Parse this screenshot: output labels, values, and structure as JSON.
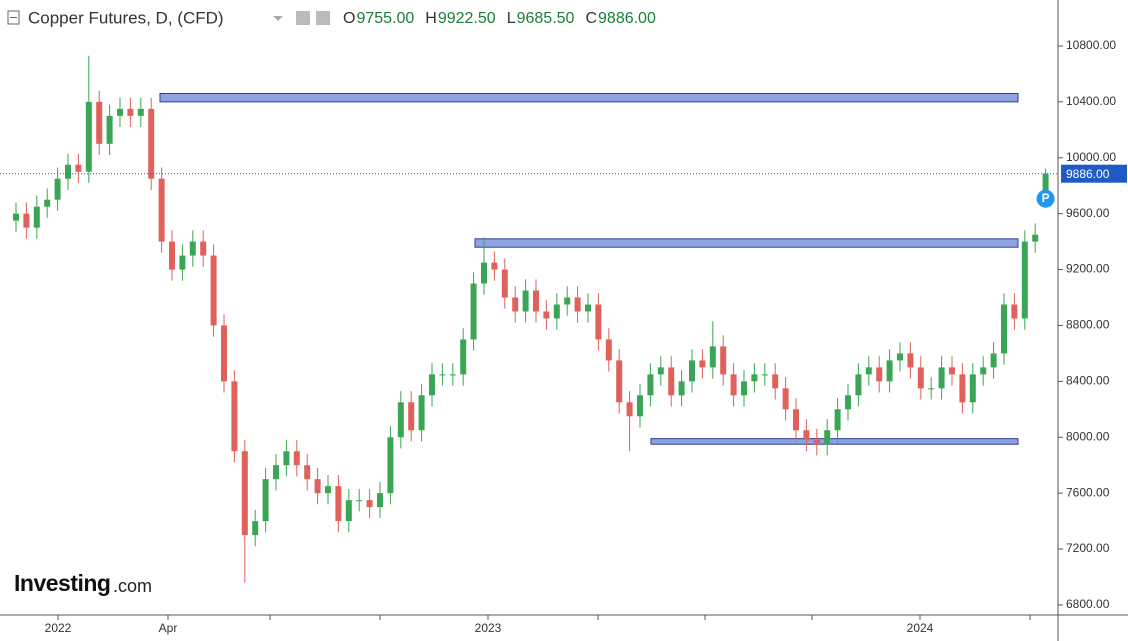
{
  "chart_data": {
    "type": "candlestick",
    "header": {
      "title": "Copper Futures, D, (CFD)",
      "ohlc": [
        {
          "label": "O",
          "value": "9755.00"
        },
        {
          "label": "H",
          "value": "9922.50"
        },
        {
          "label": "L",
          "value": "9685.50"
        },
        {
          "label": "C",
          "value": "9886.00"
        }
      ]
    },
    "logo": {
      "brand": "Investing",
      "suffix": ".com"
    },
    "up_color": "#3aa655",
    "down_color": "#e0605a",
    "x": [
      8,
      13.2,
      18.4,
      23.6,
      28.8,
      34,
      39.2,
      44.4,
      49.6,
      54.8,
      60,
      65.2,
      70.4,
      75.6,
      80.8,
      86,
      91.2,
      96.4,
      101.6,
      106.8,
      112,
      117.2,
      122.4,
      127.6,
      132.8,
      138,
      143.2,
      148.4,
      153.6,
      158.8,
      164,
      169.2,
      174.4,
      179.6,
      184.8,
      190,
      195.2,
      200.4,
      205.6,
      210.8,
      216,
      221.2,
      226.4,
      231.6,
      236.8,
      242,
      247.2,
      252.4,
      257.6,
      262.8,
      268,
      273.2,
      278.4,
      283.6,
      288.8,
      294,
      299.2,
      304.4,
      309.6,
      314.8,
      320,
      325.2,
      330.4,
      335.6,
      340.8,
      346,
      351.2,
      356.4,
      361.6,
      366.8,
      372,
      377.2,
      382.4,
      387.6,
      392.8,
      398,
      403.2,
      408.4,
      413.6,
      418.8,
      424,
      429.2,
      434.4,
      439.6,
      444.8,
      450,
      455.2,
      460.4,
      465.6,
      470.8,
      476,
      481.2,
      486.4,
      491.6,
      496.8,
      502,
      507.2,
      512.4,
      517.6,
      522.8
    ],
    "open": [
      9550,
      9600,
      9500,
      9650,
      9700,
      9850,
      9950,
      9900,
      10400,
      10100,
      10300,
      10350,
      10300,
      10350,
      9850,
      9400,
      9200,
      9300,
      9400,
      9300,
      8800,
      8400,
      7900,
      7300,
      7400,
      7700,
      7800,
      7900,
      7800,
      7700,
      7600,
      7650,
      7400,
      7550,
      7550,
      7500,
      7600,
      8000,
      8250,
      8050,
      8300,
      8450,
      8450,
      8450,
      8700,
      9100,
      9250,
      9200,
      9000,
      8900,
      9050,
      8900,
      8850,
      8950,
      9000,
      8900,
      8950,
      8700,
      8550,
      8250,
      8150,
      8300,
      8450,
      8500,
      8300,
      8400,
      8550,
      8500,
      8650,
      8450,
      8300,
      8400,
      8450,
      8450,
      8350,
      8200,
      8050,
      7980,
      7950,
      8050,
      8200,
      8300,
      8450,
      8500,
      8400,
      8550,
      8600,
      8500,
      8350,
      8350,
      8500,
      8450,
      8250,
      8450,
      8500,
      8600,
      8950,
      8850,
      9400,
      9755
    ],
    "high": [
      9680,
      9680,
      9730,
      9780,
      9930,
      10030,
      10030,
      10730,
      10480,
      10380,
      10430,
      10430,
      10430,
      10430,
      9930,
      9480,
      9380,
      9480,
      9480,
      9380,
      8880,
      8480,
      7980,
      7480,
      7780,
      7880,
      7980,
      7980,
      7880,
      7780,
      7730,
      7730,
      7630,
      7630,
      7630,
      7680,
      8080,
      8330,
      8330,
      8380,
      8530,
      8530,
      8530,
      8780,
      9180,
      9430,
      9330,
      9280,
      9080,
      9130,
      9130,
      8980,
      9030,
      9080,
      9080,
      9030,
      9030,
      8780,
      8630,
      8330,
      8380,
      8530,
      8580,
      8580,
      8480,
      8630,
      8630,
      8830,
      8730,
      8530,
      8480,
      8530,
      8530,
      8530,
      8430,
      8280,
      8130,
      8060,
      8130,
      8280,
      8380,
      8530,
      8580,
      8580,
      8630,
      8680,
      8680,
      8580,
      8430,
      8580,
      8580,
      8530,
      8530,
      8580,
      8680,
      9030,
      9030,
      9480,
      9530,
      9922.5
    ],
    "low": [
      9470,
      9420,
      9420,
      9570,
      9620,
      9770,
      9820,
      9820,
      10020,
      10020,
      10220,
      10220,
      10220,
      9770,
      9320,
      9120,
      9120,
      9220,
      9220,
      8720,
      8320,
      7820,
      6960,
      7220,
      7320,
      7620,
      7720,
      7720,
      7620,
      7520,
      7520,
      7320,
      7320,
      7470,
      7420,
      7420,
      7520,
      7920,
      7970,
      7970,
      8220,
      8370,
      8370,
      8370,
      8620,
      9020,
      9120,
      8920,
      8820,
      8820,
      8820,
      8770,
      8770,
      8870,
      8820,
      8820,
      8620,
      8470,
      8170,
      7900,
      8070,
      8220,
      8370,
      8220,
      8220,
      8320,
      8420,
      8420,
      8370,
      8220,
      8220,
      8320,
      8370,
      8270,
      8120,
      7970,
      7900,
      7870,
      7870,
      7970,
      8120,
      8220,
      8370,
      8320,
      8320,
      8470,
      8420,
      8270,
      8270,
      8270,
      8370,
      8170,
      8170,
      8370,
      8420,
      8520,
      8770,
      8770,
      9320,
      9685.5
    ],
    "close": [
      9600,
      9500,
      9650,
      9700,
      9850,
      9950,
      9900,
      10400,
      10100,
      10300,
      10350,
      10300,
      10350,
      9850,
      9400,
      9200,
      9300,
      9400,
      9300,
      8800,
      8400,
      7900,
      7300,
      7400,
      7700,
      7800,
      7900,
      7800,
      7700,
      7600,
      7650,
      7400,
      7550,
      7550,
      7500,
      7600,
      8000,
      8250,
      8050,
      8300,
      8450,
      8450,
      8450,
      8700,
      9100,
      9250,
      9200,
      9000,
      8900,
      9050,
      8900,
      8850,
      8950,
      9000,
      8900,
      8950,
      8700,
      8550,
      8250,
      8150,
      8300,
      8450,
      8500,
      8300,
      8400,
      8550,
      8500,
      8650,
      8450,
      8300,
      8400,
      8450,
      8450,
      8350,
      8200,
      8050,
      7980,
      7950,
      8050,
      8200,
      8300,
      8450,
      8500,
      8400,
      8550,
      8600,
      8500,
      8350,
      8350,
      8500,
      8450,
      8250,
      8450,
      8500,
      8600,
      8950,
      8850,
      9400,
      9450,
      9886
    ],
    "xlim": [
      0,
      529
    ],
    "xticks": [
      {
        "value": 29,
        "label": "2022"
      },
      {
        "value": 84,
        "label": "Apr"
      },
      {
        "value": 135,
        "label": null
      },
      {
        "value": 190,
        "label": null
      },
      {
        "value": 244,
        "label": "2023"
      },
      {
        "value": 299,
        "label": null
      },
      {
        "value": 352.5,
        "label": null
      },
      {
        "value": 406,
        "label": null
      },
      {
        "value": 460,
        "label": "2024"
      },
      {
        "value": 515,
        "label": null
      }
    ],
    "ylim": [
      6728,
      11129
    ],
    "yticks": [
      {
        "value": 6800,
        "label": "6800.00"
      },
      {
        "value": 7200,
        "label": "7200.00"
      },
      {
        "value": 7600,
        "label": "7600.00"
      },
      {
        "value": 8000,
        "label": "8000.00"
      },
      {
        "value": 8400,
        "label": "8400.00"
      },
      {
        "value": 8800,
        "label": "8800.00"
      },
      {
        "value": 9200,
        "label": "9200.00"
      },
      {
        "value": 9600,
        "label": "9600.00"
      },
      {
        "value": 10000,
        "label": "10000.00"
      },
      {
        "value": 10400,
        "label": "10400.00"
      },
      {
        "value": 10800,
        "label": "10800.00"
      }
    ],
    "zones": [
      {
        "low": 10400,
        "high": 10460,
        "start": 80,
        "end": 509
      },
      {
        "low": 9360,
        "high": 9420,
        "start": 237.5,
        "end": 509
      },
      {
        "low": 7950,
        "high": 7990,
        "start": 325.5,
        "end": 509
      }
    ],
    "zone_color": "#8fa3e0",
    "last_price": {
      "value": 9886,
      "label": "9886.00"
    },
    "marker": "P"
  }
}
